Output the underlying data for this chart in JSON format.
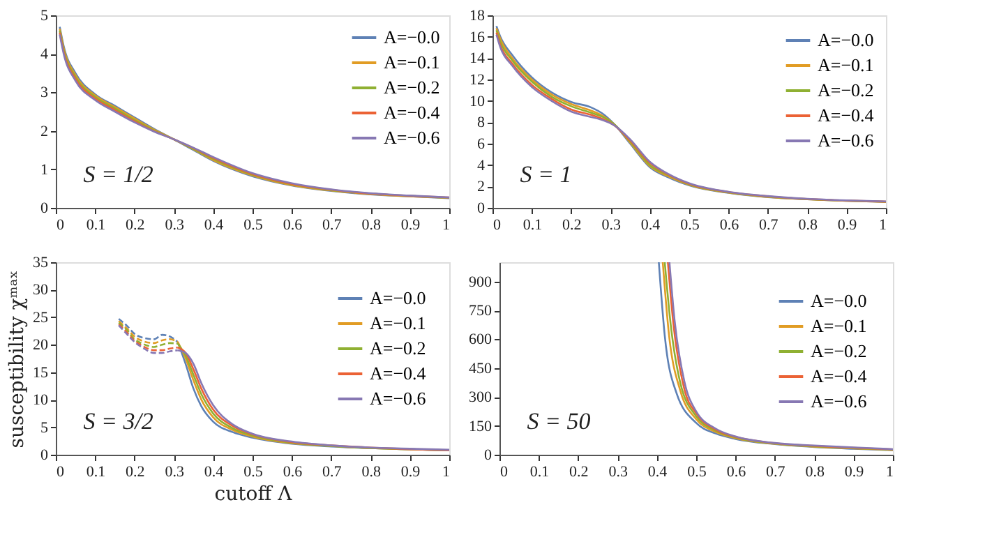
{
  "chart_data": [
    {
      "type": "line",
      "annotations": [
        "S = 1/2"
      ],
      "xlim": [
        0,
        1
      ],
      "xticks": [
        0,
        0.1,
        0.2,
        0.3,
        0.4,
        0.5,
        0.6,
        0.7,
        0.8,
        0.9,
        1
      ],
      "ylim": [
        0,
        5
      ],
      "yticks": [
        0,
        1,
        2,
        3,
        4,
        5
      ],
      "grid": false,
      "legend": "top right",
      "line_style": "solid",
      "x": [
        0.01,
        0.02,
        0.05,
        0.1,
        0.15,
        0.2,
        0.25,
        0.3,
        0.35,
        0.4,
        0.5,
        0.6,
        0.7,
        0.8,
        0.9,
        1.0
      ],
      "series": [
        {
          "name": "A=−0.0",
          "color": "#5e81b5",
          "values": [
            4.7,
            4.2,
            3.5,
            2.95,
            2.65,
            2.35,
            2.05,
            1.78,
            1.5,
            1.22,
            0.82,
            0.58,
            0.44,
            0.35,
            0.3,
            0.25
          ]
        },
        {
          "name": "A=−0.1",
          "color": "#e19c24",
          "values": [
            4.65,
            4.15,
            3.45,
            2.92,
            2.62,
            2.32,
            2.03,
            1.78,
            1.52,
            1.24,
            0.84,
            0.59,
            0.45,
            0.36,
            0.3,
            0.26
          ]
        },
        {
          "name": "A=−0.2",
          "color": "#8fb032",
          "values": [
            4.6,
            4.1,
            3.4,
            2.88,
            2.58,
            2.28,
            2.01,
            1.78,
            1.53,
            1.27,
            0.86,
            0.61,
            0.46,
            0.37,
            0.31,
            0.26
          ]
        },
        {
          "name": "A=−0.4",
          "color": "#eb6235",
          "values": [
            4.55,
            4.05,
            3.35,
            2.84,
            2.54,
            2.25,
            1.99,
            1.78,
            1.55,
            1.3,
            0.88,
            0.62,
            0.47,
            0.37,
            0.31,
            0.27
          ]
        },
        {
          "name": "A=−0.6",
          "color": "#8778b3",
          "values": [
            4.5,
            4.0,
            3.3,
            2.8,
            2.5,
            2.22,
            1.98,
            1.78,
            1.56,
            1.32,
            0.9,
            0.64,
            0.48,
            0.38,
            0.32,
            0.27
          ]
        }
      ]
    },
    {
      "type": "line",
      "annotations": [
        "S = 1"
      ],
      "xlim": [
        0,
        1
      ],
      "xticks": [
        0,
        0.1,
        0.2,
        0.3,
        0.4,
        0.5,
        0.6,
        0.7,
        0.8,
        0.9,
        1
      ],
      "ylim": [
        0,
        18
      ],
      "yticks": [
        0,
        2,
        4,
        6,
        8,
        10,
        12,
        14,
        16,
        18
      ],
      "grid": false,
      "legend": "top right",
      "line_style": "solid",
      "x": [
        0.01,
        0.02,
        0.05,
        0.1,
        0.15,
        0.2,
        0.25,
        0.28,
        0.31,
        0.35,
        0.4,
        0.45,
        0.5,
        0.6,
        0.7,
        0.8,
        0.9,
        1.0
      ],
      "series": [
        {
          "name": "A=−0.0",
          "color": "#5e81b5",
          "values": [
            17,
            16,
            14.3,
            12.2,
            10.8,
            9.9,
            9.4,
            8.8,
            7.8,
            6.0,
            3.8,
            2.8,
            2.1,
            1.4,
            1.0,
            0.8,
            0.65,
            0.55
          ]
        },
        {
          "name": "A=−0.1",
          "color": "#e19c24",
          "values": [
            16.8,
            15.8,
            14.0,
            12.0,
            10.6,
            9.7,
            9.1,
            8.6,
            7.8,
            6.1,
            3.9,
            2.9,
            2.15,
            1.42,
            1.02,
            0.8,
            0.66,
            0.56
          ]
        },
        {
          "name": "A=−0.2",
          "color": "#8fb032",
          "values": [
            16.6,
            15.5,
            13.8,
            11.8,
            10.4,
            9.5,
            8.9,
            8.5,
            7.8,
            6.2,
            4.0,
            3.0,
            2.2,
            1.45,
            1.05,
            0.82,
            0.67,
            0.57
          ]
        },
        {
          "name": "A=−0.4",
          "color": "#eb6235",
          "values": [
            16.4,
            15.2,
            13.5,
            11.5,
            10.2,
            9.2,
            8.7,
            8.3,
            7.7,
            6.3,
            4.2,
            3.05,
            2.25,
            1.48,
            1.08,
            0.83,
            0.68,
            0.58
          ]
        },
        {
          "name": "A=−0.6",
          "color": "#8778b3",
          "values": [
            16.2,
            15,
            13.3,
            11.3,
            10.0,
            9.0,
            8.5,
            8.2,
            7.7,
            6.4,
            4.3,
            3.1,
            2.3,
            1.5,
            1.1,
            0.85,
            0.7,
            0.6
          ]
        }
      ]
    },
    {
      "type": "line",
      "annotations": [
        "S = 3/2"
      ],
      "xlabel": "cutoff Λ",
      "ylabel": "susceptibility χᵐᵃˣ",
      "xlim": [
        0,
        1
      ],
      "xticks": [
        0,
        0.1,
        0.2,
        0.3,
        0.4,
        0.5,
        0.6,
        0.7,
        0.8,
        0.9,
        1
      ],
      "ylim": [
        0,
        35
      ],
      "yticks": [
        0,
        5,
        10,
        15,
        20,
        25,
        30,
        35
      ],
      "grid": false,
      "legend": "top right",
      "line_style": "solid",
      "series": [
        {
          "name": "A=−0.0",
          "color": "#5e81b5",
          "x": [
            0.31,
            0.33,
            0.35,
            0.37,
            0.4,
            0.45,
            0.5,
            0.6,
            0.7,
            0.8,
            0.9,
            1.0
          ],
          "values": [
            20.5,
            16.5,
            12,
            8.8,
            6.0,
            4.1,
            3.1,
            2.0,
            1.5,
            1.2,
            1.0,
            0.8
          ]
        },
        {
          "name": "A=−0.1",
          "color": "#e19c24",
          "x": [
            0.31,
            0.33,
            0.35,
            0.37,
            0.4,
            0.45,
            0.5,
            0.6,
            0.7,
            0.8,
            0.9,
            1.0
          ],
          "values": [
            20.5,
            17.5,
            13.5,
            10,
            6.8,
            4.5,
            3.3,
            2.1,
            1.6,
            1.2,
            1.0,
            0.8
          ]
        },
        {
          "name": "A=−0.2",
          "color": "#8fb032",
          "x": [
            0.31,
            0.33,
            0.35,
            0.37,
            0.4,
            0.45,
            0.5,
            0.6,
            0.7,
            0.8,
            0.9,
            1.0
          ],
          "values": [
            20.2,
            18,
            14.5,
            11,
            7.5,
            4.8,
            3.5,
            2.2,
            1.6,
            1.2,
            1.0,
            0.8
          ]
        },
        {
          "name": "A=−0.4",
          "color": "#eb6235",
          "x": [
            0.31,
            0.33,
            0.35,
            0.37,
            0.4,
            0.45,
            0.5,
            0.6,
            0.7,
            0.8,
            0.9,
            1.0
          ],
          "values": [
            19.5,
            18.5,
            15.5,
            12,
            8.2,
            5.2,
            3.7,
            2.3,
            1.7,
            1.3,
            1.0,
            0.8
          ]
        },
        {
          "name": "A=−0.6",
          "color": "#8778b3",
          "x": [
            0.31,
            0.33,
            0.35,
            0.37,
            0.4,
            0.45,
            0.5,
            0.6,
            0.7,
            0.8,
            0.9,
            1.0
          ],
          "values": [
            19,
            18.5,
            16.5,
            13,
            9,
            5.5,
            3.8,
            2.4,
            1.7,
            1.3,
            1.1,
            0.9
          ]
        },
        {
          "color": "#5e81b5",
          "line_style": "dashed",
          "x": [
            0.16,
            0.18,
            0.2,
            0.22,
            0.25,
            0.27,
            0.29,
            0.31
          ],
          "values": [
            24.7,
            23.5,
            22,
            21.3,
            21,
            21.8,
            21.5,
            20.5
          ]
        },
        {
          "color": "#e19c24",
          "line_style": "dashed",
          "x": [
            0.16,
            0.18,
            0.2,
            0.22,
            0.25,
            0.27,
            0.29,
            0.31
          ],
          "values": [
            24.3,
            23,
            21.5,
            20.7,
            20.3,
            20.8,
            21,
            20.5
          ]
        },
        {
          "color": "#8fb032",
          "line_style": "dashed",
          "x": [
            0.16,
            0.18,
            0.2,
            0.22,
            0.25,
            0.27,
            0.29,
            0.31
          ],
          "values": [
            24,
            22.7,
            21,
            20.2,
            19.6,
            20,
            20.3,
            20.2
          ]
        },
        {
          "color": "#eb6235",
          "line_style": "dashed",
          "x": [
            0.16,
            0.18,
            0.2,
            0.22,
            0.25,
            0.27,
            0.29,
            0.31
          ],
          "values": [
            23.7,
            22.3,
            20.7,
            19.8,
            19,
            19,
            19.3,
            19.5
          ]
        },
        {
          "color": "#8778b3",
          "line_style": "dashed",
          "x": [
            0.16,
            0.18,
            0.2,
            0.22,
            0.25,
            0.27,
            0.29,
            0.31
          ],
          "values": [
            23.5,
            22,
            20.5,
            19.5,
            18.5,
            18.5,
            18.8,
            19
          ]
        }
      ]
    },
    {
      "type": "line",
      "annotations": [
        "S = 50"
      ],
      "xlim": [
        0,
        1
      ],
      "xticks": [
        0,
        0.1,
        0.2,
        0.3,
        0.4,
        0.5,
        0.6,
        0.7,
        0.8,
        0.9,
        1
      ],
      "ylim": [
        0,
        1000
      ],
      "yticks": [
        0,
        150,
        300,
        450,
        600,
        750,
        900
      ],
      "grid": false,
      "legend": "top right",
      "line_style": "solid",
      "series": [
        {
          "name": "A=−0.0",
          "color": "#5e81b5",
          "x": [
            0.405,
            0.42,
            0.45,
            0.5,
            0.55,
            0.6,
            0.7,
            0.8,
            0.9,
            1.0
          ],
          "values": [
            1000,
            620,
            320,
            165,
            110,
            82,
            55,
            40,
            31,
            24
          ]
        },
        {
          "name": "A=−0.1",
          "color": "#e19c24",
          "x": [
            0.415,
            0.43,
            0.46,
            0.5,
            0.55,
            0.6,
            0.7,
            0.8,
            0.9,
            1.0
          ],
          "values": [
            1000,
            640,
            330,
            185,
            118,
            86,
            57,
            42,
            33,
            25
          ]
        },
        {
          "name": "A=−0.2",
          "color": "#8fb032",
          "x": [
            0.42,
            0.435,
            0.46,
            0.5,
            0.55,
            0.6,
            0.7,
            0.8,
            0.9,
            1.0
          ],
          "values": [
            1000,
            680,
            370,
            200,
            125,
            90,
            58,
            44,
            35,
            26
          ]
        },
        {
          "name": "A=−0.4",
          "color": "#eb6235",
          "x": [
            0.428,
            0.44,
            0.47,
            0.5,
            0.55,
            0.6,
            0.7,
            0.8,
            0.9,
            1.0
          ],
          "values": [
            1000,
            720,
            340,
            215,
            130,
            93,
            60,
            46,
            36,
            28
          ]
        },
        {
          "name": "A=−0.6",
          "color": "#8778b3",
          "x": [
            0.432,
            0.445,
            0.47,
            0.5,
            0.55,
            0.6,
            0.7,
            0.8,
            0.9,
            1.0
          ],
          "values": [
            1000,
            700,
            380,
            225,
            135,
            95,
            61,
            48,
            38,
            29
          ]
        }
      ]
    }
  ]
}
